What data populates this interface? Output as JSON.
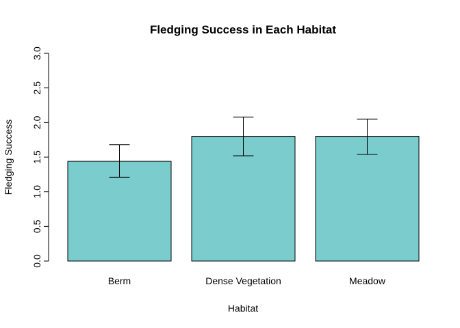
{
  "chart_data": {
    "type": "bar",
    "title": "Fledging Success in Each Habitat",
    "xlabel": "Habitat",
    "ylabel": "Fledging Success",
    "categories": [
      "Berm",
      "Dense Vegetation",
      "Meadow"
    ],
    "values": [
      1.44,
      1.8,
      1.8
    ],
    "error_low": [
      1.21,
      1.52,
      1.54
    ],
    "error_high": [
      1.68,
      2.08,
      2.05
    ],
    "ylim": [
      0,
      3.0
    ],
    "yticks": [
      "0.0",
      "0.5",
      "1.0",
      "1.5",
      "2.0",
      "2.5",
      "3.0"
    ],
    "bar_color": "#7ACCCD",
    "grid": false,
    "legend": "none"
  }
}
